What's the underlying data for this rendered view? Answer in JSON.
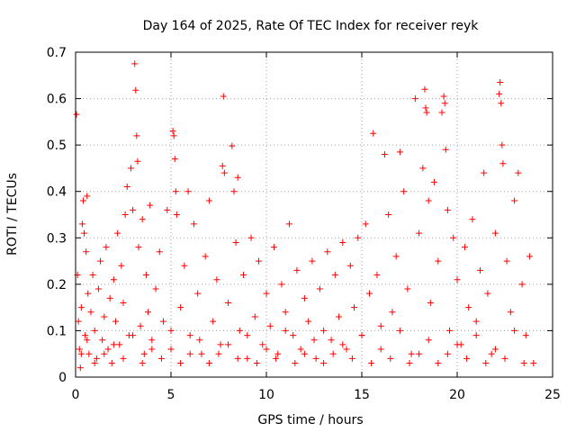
{
  "chart_data": {
    "type": "scatter",
    "title": "Day 164 of 2025, Rate Of TEC Index for receiver reyk",
    "xlabel": "GPS time / hours",
    "ylabel": "ROTI / TECUs",
    "xlim": [
      0,
      25
    ],
    "ylim": [
      0,
      0.7
    ],
    "xticks": [
      "0",
      "5",
      "10",
      "15",
      "20",
      "25"
    ],
    "yticks": [
      "0",
      "0.1",
      "0.2",
      "0.3",
      "0.4",
      "0.5",
      "0.6",
      "0.7"
    ],
    "grid": true,
    "marker": "+",
    "color": "#ff0000",
    "series": [
      {
        "name": "ROTI",
        "points": [
          [
            0.05,
            0.566
          ],
          [
            0.1,
            0.22
          ],
          [
            0.15,
            0.12
          ],
          [
            0.2,
            0.06
          ],
          [
            0.25,
            0.02
          ],
          [
            0.3,
            0.15
          ],
          [
            0.35,
            0.33
          ],
          [
            0.4,
            0.38
          ],
          [
            0.45,
            0.31
          ],
          [
            0.5,
            0.09
          ],
          [
            0.55,
            0.27
          ],
          [
            0.6,
            0.39
          ],
          [
            0.65,
            0.18
          ],
          [
            0.7,
            0.05
          ],
          [
            0.8,
            0.14
          ],
          [
            0.9,
            0.22
          ],
          [
            1.0,
            0.1
          ],
          [
            1.1,
            0.04
          ],
          [
            1.2,
            0.19
          ],
          [
            1.3,
            0.25
          ],
          [
            1.4,
            0.08
          ],
          [
            1.5,
            0.13
          ],
          [
            1.6,
            0.28
          ],
          [
            1.7,
            0.06
          ],
          [
            1.8,
            0.17
          ],
          [
            1.9,
            0.03
          ],
          [
            2.0,
            0.21
          ],
          [
            2.1,
            0.12
          ],
          [
            2.2,
            0.31
          ],
          [
            2.3,
            0.07
          ],
          [
            2.4,
            0.24
          ],
          [
            2.5,
            0.16
          ],
          [
            2.6,
            0.35
          ],
          [
            2.7,
            0.41
          ],
          [
            2.8,
            0.09
          ],
          [
            2.9,
            0.45
          ],
          [
            3.0,
            0.36
          ],
          [
            3.1,
            0.675
          ],
          [
            3.15,
            0.618
          ],
          [
            3.2,
            0.52
          ],
          [
            3.25,
            0.465
          ],
          [
            3.3,
            0.28
          ],
          [
            3.4,
            0.11
          ],
          [
            3.5,
            0.34
          ],
          [
            3.6,
            0.05
          ],
          [
            3.7,
            0.22
          ],
          [
            3.8,
            0.14
          ],
          [
            3.9,
            0.37
          ],
          [
            4.0,
            0.08
          ],
          [
            4.2,
            0.19
          ],
          [
            4.4,
            0.27
          ],
          [
            4.6,
            0.12
          ],
          [
            4.8,
            0.36
          ],
          [
            5.0,
            0.06
          ],
          [
            5.1,
            0.53
          ],
          [
            5.15,
            0.52
          ],
          [
            5.2,
            0.47
          ],
          [
            5.25,
            0.4
          ],
          [
            5.3,
            0.35
          ],
          [
            5.5,
            0.15
          ],
          [
            5.7,
            0.24
          ],
          [
            5.9,
            0.4
          ],
          [
            6.0,
            0.09
          ],
          [
            6.2,
            0.33
          ],
          [
            6.4,
            0.18
          ],
          [
            6.6,
            0.05
          ],
          [
            6.8,
            0.26
          ],
          [
            7.0,
            0.38
          ],
          [
            7.2,
            0.12
          ],
          [
            7.4,
            0.21
          ],
          [
            7.6,
            0.07
          ],
          [
            7.7,
            0.455
          ],
          [
            7.75,
            0.605
          ],
          [
            7.8,
            0.44
          ],
          [
            8.0,
            0.16
          ],
          [
            8.2,
            0.498
          ],
          [
            8.3,
            0.4
          ],
          [
            8.4,
            0.29
          ],
          [
            8.5,
            0.43
          ],
          [
            8.6,
            0.1
          ],
          [
            8.8,
            0.22
          ],
          [
            9.0,
            0.04
          ],
          [
            9.2,
            0.3
          ],
          [
            9.4,
            0.13
          ],
          [
            9.6,
            0.25
          ],
          [
            9.8,
            0.07
          ],
          [
            10.0,
            0.18
          ],
          [
            10.2,
            0.11
          ],
          [
            10.4,
            0.28
          ],
          [
            10.6,
            0.05
          ],
          [
            10.8,
            0.2
          ],
          [
            11.0,
            0.14
          ],
          [
            11.2,
            0.33
          ],
          [
            11.4,
            0.09
          ],
          [
            11.6,
            0.23
          ],
          [
            11.8,
            0.06
          ],
          [
            12.0,
            0.17
          ],
          [
            12.2,
            0.12
          ],
          [
            12.4,
            0.25
          ],
          [
            12.6,
            0.04
          ],
          [
            12.8,
            0.19
          ],
          [
            13.0,
            0.1
          ],
          [
            13.2,
            0.27
          ],
          [
            13.4,
            0.08
          ],
          [
            13.6,
            0.22
          ],
          [
            13.8,
            0.13
          ],
          [
            14.0,
            0.29
          ],
          [
            14.2,
            0.06
          ],
          [
            14.4,
            0.24
          ],
          [
            14.6,
            0.15
          ],
          [
            14.8,
            0.3
          ],
          [
            15.0,
            0.09
          ],
          [
            15.2,
            0.33
          ],
          [
            15.4,
            0.18
          ],
          [
            15.6,
            0.525
          ],
          [
            15.8,
            0.22
          ],
          [
            16.0,
            0.11
          ],
          [
            16.2,
            0.48
          ],
          [
            16.4,
            0.35
          ],
          [
            16.6,
            0.14
          ],
          [
            16.8,
            0.26
          ],
          [
            17.0,
            0.485
          ],
          [
            17.2,
            0.4
          ],
          [
            17.4,
            0.19
          ],
          [
            17.6,
            0.05
          ],
          [
            17.8,
            0.6
          ],
          [
            18.0,
            0.31
          ],
          [
            18.2,
            0.45
          ],
          [
            18.3,
            0.62
          ],
          [
            18.35,
            0.58
          ],
          [
            18.4,
            0.57
          ],
          [
            18.5,
            0.38
          ],
          [
            18.6,
            0.16
          ],
          [
            18.8,
            0.42
          ],
          [
            19.0,
            0.25
          ],
          [
            19.2,
            0.57
          ],
          [
            19.3,
            0.605
          ],
          [
            19.35,
            0.59
          ],
          [
            19.4,
            0.49
          ],
          [
            19.5,
            0.36
          ],
          [
            19.6,
            0.1
          ],
          [
            19.8,
            0.3
          ],
          [
            20.0,
            0.21
          ],
          [
            20.2,
            0.07
          ],
          [
            20.4,
            0.28
          ],
          [
            20.6,
            0.15
          ],
          [
            20.8,
            0.34
          ],
          [
            21.0,
            0.12
          ],
          [
            21.2,
            0.23
          ],
          [
            21.4,
            0.44
          ],
          [
            21.6,
            0.18
          ],
          [
            21.8,
            0.05
          ],
          [
            22.0,
            0.31
          ],
          [
            22.2,
            0.61
          ],
          [
            22.25,
            0.635
          ],
          [
            22.3,
            0.59
          ],
          [
            22.35,
            0.5
          ],
          [
            22.4,
            0.46
          ],
          [
            22.6,
            0.25
          ],
          [
            22.8,
            0.14
          ],
          [
            23.0,
            0.38
          ],
          [
            23.2,
            0.44
          ],
          [
            23.4,
            0.2
          ],
          [
            23.6,
            0.09
          ],
          [
            23.8,
            0.26
          ],
          [
            24.0,
            0.03
          ],
          [
            0.3,
            0.05
          ],
          [
            0.6,
            0.08
          ],
          [
            1.0,
            0.03
          ],
          [
            1.5,
            0.05
          ],
          [
            2.0,
            0.07
          ],
          [
            2.5,
            0.04
          ],
          [
            3.0,
            0.09
          ],
          [
            3.5,
            0.03
          ],
          [
            4.0,
            0.06
          ],
          [
            4.5,
            0.04
          ],
          [
            5.0,
            0.1
          ],
          [
            5.5,
            0.03
          ],
          [
            6.0,
            0.05
          ],
          [
            6.5,
            0.08
          ],
          [
            7.0,
            0.03
          ],
          [
            7.5,
            0.05
          ],
          [
            8.0,
            0.07
          ],
          [
            8.5,
            0.04
          ],
          [
            9.0,
            0.09
          ],
          [
            9.5,
            0.03
          ],
          [
            10.0,
            0.06
          ],
          [
            10.5,
            0.04
          ],
          [
            11.0,
            0.1
          ],
          [
            11.5,
            0.03
          ],
          [
            12.0,
            0.05
          ],
          [
            12.5,
            0.08
          ],
          [
            13.0,
            0.03
          ],
          [
            13.5,
            0.05
          ],
          [
            14.0,
            0.07
          ],
          [
            14.5,
            0.04
          ],
          [
            15.0,
            0.09
          ],
          [
            15.5,
            0.03
          ],
          [
            16.0,
            0.06
          ],
          [
            16.5,
            0.04
          ],
          [
            17.0,
            0.1
          ],
          [
            17.5,
            0.03
          ],
          [
            18.0,
            0.05
          ],
          [
            18.5,
            0.08
          ],
          [
            19.0,
            0.03
          ],
          [
            19.5,
            0.05
          ],
          [
            20.0,
            0.07
          ],
          [
            20.5,
            0.04
          ],
          [
            21.0,
            0.09
          ],
          [
            21.5,
            0.03
          ],
          [
            22.0,
            0.06
          ],
          [
            22.5,
            0.04
          ],
          [
            23.0,
            0.1
          ],
          [
            23.5,
            0.03
          ]
        ]
      }
    ]
  }
}
